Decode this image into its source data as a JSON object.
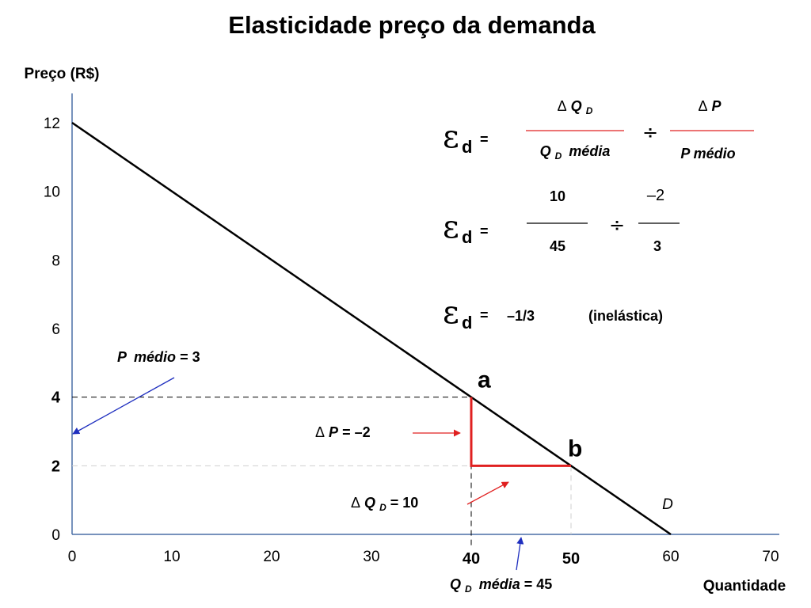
{
  "chart_data": {
    "type": "line",
    "title": "Elasticidade preço da demanda",
    "ylabel": "Preço (R$)",
    "xlabel": "Quantidade",
    "xlim": [
      0,
      70
    ],
    "ylim": [
      0,
      12
    ],
    "x_ticks": [
      0,
      10,
      20,
      30,
      40,
      50,
      60,
      70
    ],
    "y_ticks": [
      0,
      2,
      4,
      6,
      8,
      10,
      12
    ],
    "bold_x_ticks": [
      40,
      50
    ],
    "bold_y_ticks": [
      2,
      4
    ],
    "grid": false,
    "series": [
      {
        "name": "D",
        "x": [
          0,
          60
        ],
        "y": [
          12,
          0
        ]
      }
    ],
    "points": [
      {
        "label": "a",
        "x": 40,
        "y": 4
      },
      {
        "label": "b",
        "x": 50,
        "y": 2
      }
    ],
    "annotations": {
      "p_medio": {
        "prefix": "P",
        "italic_text": "médio",
        "suffix": " = 3",
        "target_y": 3
      },
      "delta_p": {
        "symbol": "Δ",
        "var": "P",
        "suffix": " = –2"
      },
      "delta_q": {
        "symbol": "Δ",
        "var": "Q",
        "sub": "D",
        "suffix": " = 10"
      },
      "q_media": {
        "var": "Q",
        "sub": "D",
        "italic_text": "média",
        "suffix": " = 45",
        "target_x": 45
      }
    }
  },
  "formula": {
    "epsilon": "ε",
    "epsilon_sub": "d",
    "equals": "=",
    "divide": "÷",
    "row1": {
      "num1_symbol": "Δ",
      "num1_var": "Q",
      "num1_sub": "D",
      "den1_var": "Q",
      "den1_sub": "D",
      "den1_text": "média",
      "num2_symbol": "Δ",
      "num2_var": "P",
      "den2_text": "P médio"
    },
    "row2": {
      "num1": "10",
      "den1": "45",
      "num2": "–2",
      "den2": "3"
    },
    "row3": {
      "result": "–1/3",
      "note": "(inelástica)"
    }
  },
  "colors": {
    "axis": "#4a6fa5",
    "curve": "#000000",
    "highlight": "#e02020",
    "arrow_blue": "#1f2fbf",
    "arrow_red": "#e02020"
  }
}
